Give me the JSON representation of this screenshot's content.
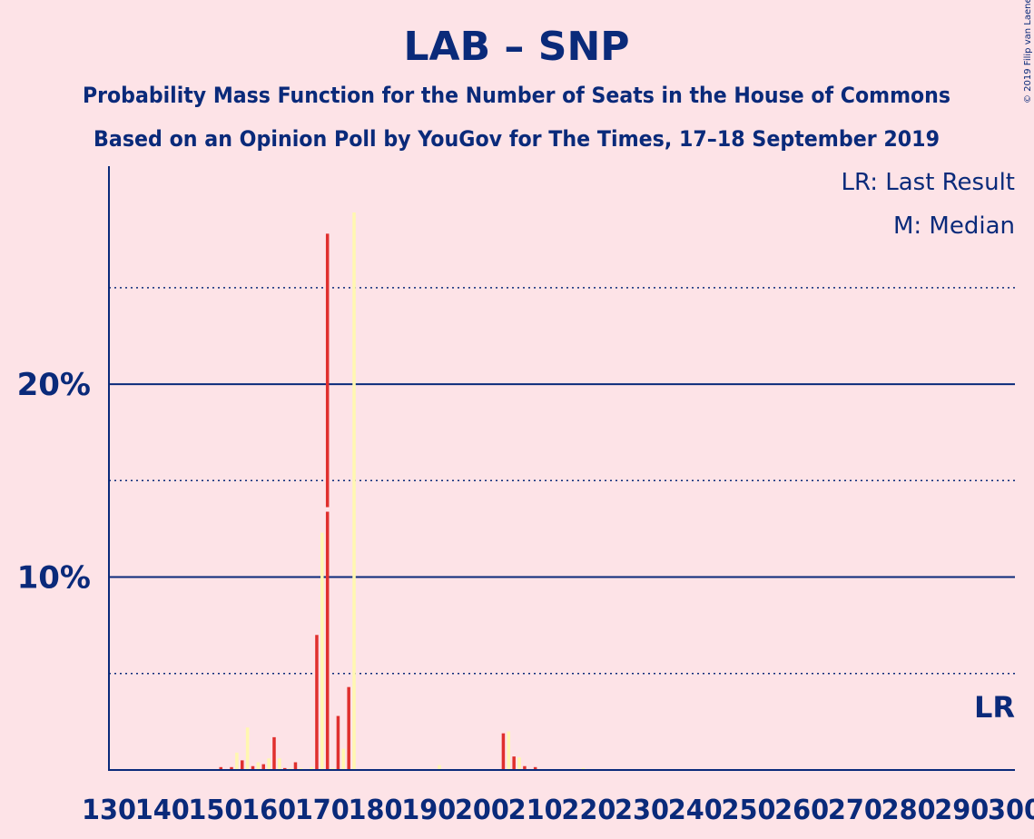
{
  "chart_data": {
    "type": "bar",
    "title": "LAB – SNP",
    "subtitle_1": "Probability Mass Function for the Number of Seats in the House of Commons",
    "subtitle_2": "Based on an Opinion Poll by YouGov for The Times, 17–18 September 2019",
    "copyright": "© 2019 Filip van Laenen",
    "legend": {
      "placement": "top-right",
      "items": [
        "LR: Last Result",
        "M: Median"
      ]
    },
    "last_result_marker": "LR",
    "x_ticks": [
      "130",
      "140",
      "150",
      "160",
      "170",
      "180",
      "190",
      "200",
      "210",
      "220",
      "230",
      "240",
      "250",
      "260",
      "270",
      "280",
      "290",
      "300"
    ],
    "xlim": [
      130,
      300
    ],
    "y_ticks": [
      "10%",
      "20%"
    ],
    "ylim": [
      0,
      31.3
    ],
    "gridlines": {
      "solid": [
        10,
        20
      ],
      "dotted": [
        5,
        15,
        25
      ]
    },
    "colors": {
      "background": "#fde3e7",
      "axis_and_text": "#0a2a7a",
      "red_bars": "#e0302e",
      "cream_bars": "#fff7b0",
      "median_gap": "#fde3e7"
    },
    "series": [
      {
        "color": "red",
        "points": [
          {
            "x": 151,
            "y": 0.15
          },
          {
            "x": 153,
            "y": 0.15
          },
          {
            "x": 155,
            "y": 0.5
          },
          {
            "x": 157,
            "y": 0.2
          },
          {
            "x": 159,
            "y": 0.3
          },
          {
            "x": 161,
            "y": 1.7
          },
          {
            "x": 163,
            "y": 0.1
          },
          {
            "x": 165,
            "y": 0.4
          },
          {
            "x": 169,
            "y": 7.0
          },
          {
            "x": 171,
            "y": 27.8
          },
          {
            "x": 173,
            "y": 2.8
          },
          {
            "x": 175,
            "y": 4.3
          },
          {
            "x": 204,
            "y": 1.9
          },
          {
            "x": 206,
            "y": 0.7
          },
          {
            "x": 208,
            "y": 0.2
          },
          {
            "x": 210,
            "y": 0.15
          }
        ]
      },
      {
        "color": "cream",
        "points": [
          {
            "x": 154,
            "y": 0.9
          },
          {
            "x": 156,
            "y": 2.2
          },
          {
            "x": 158,
            "y": 0.4
          },
          {
            "x": 160,
            "y": 0.6
          },
          {
            "x": 162,
            "y": 0.6
          },
          {
            "x": 164,
            "y": 0.1
          },
          {
            "x": 166,
            "y": 0.1
          },
          {
            "x": 168,
            "y": 0.15
          },
          {
            "x": 170,
            "y": 12.3
          },
          {
            "x": 172,
            "y": 0.1
          },
          {
            "x": 174,
            "y": 1.1
          },
          {
            "x": 176,
            "y": 28.9
          },
          {
            "x": 192,
            "y": 0.25
          },
          {
            "x": 205,
            "y": 2.0
          },
          {
            "x": 207,
            "y": 0.65
          },
          {
            "x": 219,
            "y": 0.1
          }
        ]
      }
    ],
    "median_seats": 171
  }
}
